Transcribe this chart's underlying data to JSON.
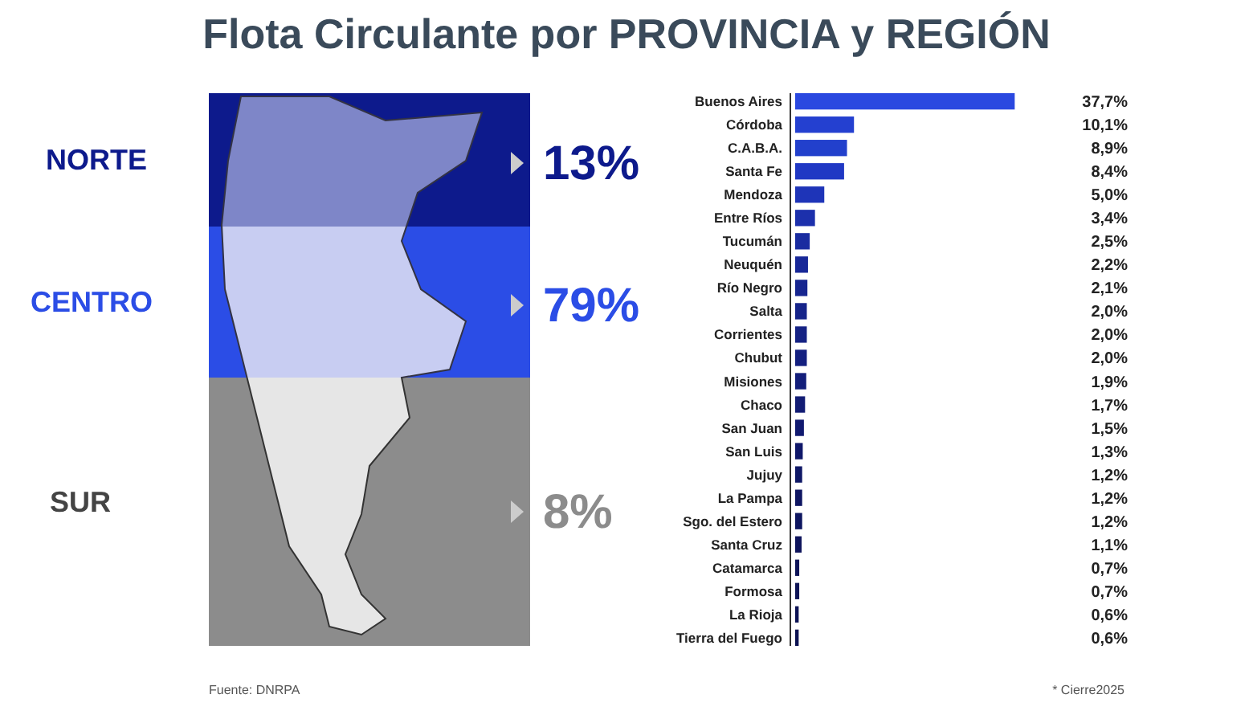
{
  "chart_data": [
    {
      "type": "other",
      "title": "Flota Circulante por PROVINCIA y REGIÓN",
      "categories": [
        "NORTE",
        "CENTRO",
        "SUR"
      ],
      "values": [
        13,
        79,
        8
      ],
      "value_labels": [
        "13%",
        "79%",
        "8%"
      ],
      "colors": [
        "#0d1a8c",
        "#2b4de6",
        "#8c8c8c"
      ]
    },
    {
      "type": "bar",
      "orientation": "horizontal",
      "data_labels": true,
      "annotations": [
        "Fuente: DNRPA",
        "* Cierre2025"
      ],
      "categories": [
        "Buenos Aires",
        "Córdoba",
        "C.A.B.A.",
        "Santa Fe",
        "Mendoza",
        "Entre Ríos",
        "Tucumán",
        "Neuquén",
        "Río Negro",
        "Salta",
        "Corrientes",
        "Chubut",
        "Misiones",
        "Chaco",
        "San Juan",
        "San Luis",
        "Jujuy",
        "La Pampa",
        "Sgo. del Estero",
        "Santa Cruz",
        "Catamarca",
        "Formosa",
        "La Rioja",
        "Tierra del Fuego"
      ],
      "values": [
        37.7,
        10.1,
        8.9,
        8.4,
        5.0,
        3.4,
        2.5,
        2.2,
        2.1,
        2.0,
        2.0,
        2.0,
        1.9,
        1.7,
        1.5,
        1.3,
        1.2,
        1.2,
        1.2,
        1.1,
        0.7,
        0.7,
        0.6,
        0.6
      ],
      "value_labels": [
        "37,7%",
        "10,1%",
        "8,9%",
        "8,4%",
        "5,0%",
        "3,4%",
        "2,5%",
        "2,2%",
        "2,1%",
        "2,0%",
        "2,0%",
        "2,0%",
        "1,9%",
        "1,7%",
        "1,5%",
        "1,3%",
        "1,2%",
        "1,2%",
        "1,2%",
        "1,1%",
        "0,7%",
        "0,7%",
        "0,6%",
        "0,6%"
      ],
      "colors": [
        "#2a48e0",
        "#2440d0",
        "#2240cc",
        "#2038c4",
        "#1e34b8",
        "#1c30ac",
        "#1a2ca0",
        "#182898",
        "#172690",
        "#16248a",
        "#152284",
        "#142080",
        "#131e7a",
        "#121c74",
        "#111a70",
        "#10186a",
        "#0f1866",
        "#0f1662",
        "#0e1660",
        "#0e145c",
        "#0d1458",
        "#0d1456",
        "#0c1254",
        "#0c1252"
      ]
    }
  ]
}
